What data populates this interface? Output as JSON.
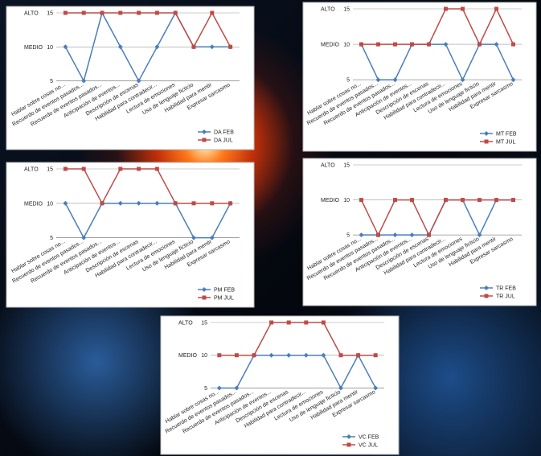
{
  "chart_data": [
    {
      "type": "line",
      "categories": [
        "Hablar sobre cosas no...",
        "Recuerdo de eventos pasados...",
        "Recuerdo de eventos pasados...",
        "Anticipación de eventos...",
        "Descripción de escenas",
        "Habilidad para contradecir...",
        "Lectura de emociones",
        "Uso de lenguaje ficticio",
        "Habilidad para mentir",
        "Expresar sarcasmo"
      ],
      "series": [
        {
          "name": "DA FEB",
          "color": "#4a7ebb",
          "values": [
            10,
            5,
            15,
            10,
            5,
            10,
            15,
            10,
            10,
            10
          ]
        },
        {
          "name": "DA JUL",
          "color": "#be4b48",
          "values": [
            15,
            15,
            15,
            15,
            15,
            15,
            15,
            10,
            15,
            10
          ]
        }
      ],
      "ylim": [
        5,
        15
      ],
      "yticks": [
        5,
        10,
        15
      ],
      "annotations": [
        {
          "text": "ALTO",
          "y": 15
        },
        {
          "text": "MEDIO",
          "y": 10
        }
      ],
      "grid": true,
      "legend": "bottom-right"
    },
    {
      "type": "line",
      "categories": [
        "Hablar sobre cosas no...",
        "Recuerdo de eventos pasados...",
        "Recuerdo de eventos pasados...",
        "Anticipación de eventos...",
        "Descripción de escenas",
        "Habilidad para contradecir...",
        "Lectura de emociones",
        "Uso de lenguaje ficticio",
        "Habilidad para mentir",
        "Expresar sarcasmo"
      ],
      "series": [
        {
          "name": "MT FEB",
          "color": "#4a7ebb",
          "values": [
            10,
            5,
            5,
            10,
            10,
            10,
            5,
            10,
            10,
            5
          ]
        },
        {
          "name": "MT JUL",
          "color": "#be4b48",
          "values": [
            10,
            10,
            10,
            10,
            10,
            15,
            15,
            10,
            15,
            10
          ]
        }
      ],
      "ylim": [
        5,
        15
      ],
      "yticks": [
        5,
        10,
        15
      ],
      "annotations": [
        {
          "text": "ALTO",
          "y": 15
        },
        {
          "text": "MEDIO",
          "y": 10
        }
      ],
      "grid": true,
      "legend": "bottom-right"
    },
    {
      "type": "line",
      "categories": [
        "Hablar sobre cosas no...",
        "Recuerdo de eventos pasados...",
        "Recuerdo de eventos pasados...",
        "Anticipación de eventos...",
        "Descripción de escenas",
        "Habilidad para contradecir...",
        "Lectura de emociones",
        "Uso de lenguaje ficticio",
        "Habilidad para mentir",
        "Expresar sarcasmo"
      ],
      "series": [
        {
          "name": "PM FEB",
          "color": "#4a7ebb",
          "values": [
            10,
            5,
            10,
            10,
            10,
            10,
            10,
            5,
            5,
            10
          ]
        },
        {
          "name": "PM JUL",
          "color": "#be4b48",
          "values": [
            15,
            15,
            10,
            15,
            15,
            15,
            10,
            10,
            10,
            10
          ]
        }
      ],
      "ylim": [
        5,
        15
      ],
      "yticks": [
        5,
        10,
        15
      ],
      "annotations": [
        {
          "text": "ALTO",
          "y": 15
        },
        {
          "text": "MEDIO",
          "y": 10
        }
      ],
      "grid": true,
      "legend": "bottom-right"
    },
    {
      "type": "line",
      "categories": [
        "Hablar sobre cosas no...",
        "Recuerdo de eventos pasados...",
        "Recuerdo de eventos pasados...",
        "Anticipación de eventos...",
        "Descripción de escenas",
        "Habilidad para contradecir...",
        "Lectura de emociones",
        "Uso de lenguaje ficticio",
        "Habilidad para mentir",
        "Expresar sarcasmo"
      ],
      "series": [
        {
          "name": "TR FEB",
          "color": "#4a7ebb",
          "values": [
            5,
            5,
            5,
            5,
            5,
            10,
            10,
            5,
            10,
            10
          ]
        },
        {
          "name": "TR JUL",
          "color": "#be4b48",
          "values": [
            10,
            5,
            10,
            10,
            5,
            10,
            10,
            10,
            10,
            10
          ]
        }
      ],
      "ylim": [
        5,
        15
      ],
      "yticks": [
        5,
        10,
        15
      ],
      "annotations": [
        {
          "text": "ALTO",
          "y": 15
        },
        {
          "text": "MEDIO",
          "y": 10
        }
      ],
      "grid": true,
      "legend": "bottom-right"
    },
    {
      "type": "line",
      "categories": [
        "Hablar sobre cosas no...",
        "Recuerdo de eventos pasados...",
        "Recuerdo de eventos pasados...",
        "Anticipación de eventos...",
        "Descripción de escenas",
        "Habilidad para contradecir...",
        "Lectura de emociones",
        "Uso de lenguaje ficticio",
        "Habilidad para mentir",
        "Expresar sarcasmo"
      ],
      "series": [
        {
          "name": "VC FEB",
          "color": "#4a7ebb",
          "values": [
            5,
            5,
            10,
            10,
            10,
            10,
            10,
            5,
            10,
            5
          ]
        },
        {
          "name": "VC JUL",
          "color": "#be4b48",
          "values": [
            10,
            10,
            10,
            15,
            15,
            15,
            15,
            10,
            10,
            10
          ]
        }
      ],
      "ylim": [
        5,
        15
      ],
      "yticks": [
        5,
        10,
        15
      ],
      "annotations": [
        {
          "text": "ALTO",
          "y": 15
        },
        {
          "text": "MEDIO",
          "y": 10
        }
      ],
      "grid": true,
      "legend": "bottom-right"
    }
  ]
}
